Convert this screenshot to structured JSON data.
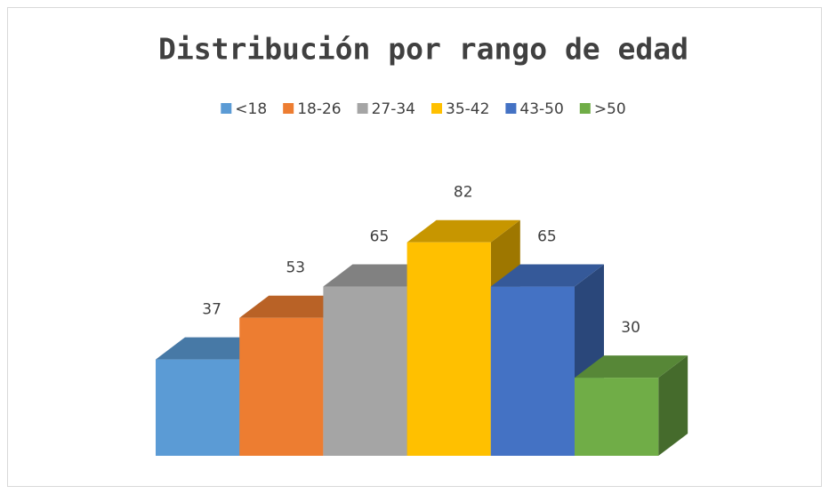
{
  "chart_data": {
    "type": "bar3d",
    "title": "Distribución por rango de edad",
    "series": [
      {
        "name": "<18",
        "color": "#5b9bd5",
        "values": [
          37
        ]
      },
      {
        "name": "18-26",
        "color": "#ed7d31",
        "values": [
          53
        ]
      },
      {
        "name": "27-34",
        "color": "#a5a5a5",
        "values": [
          65
        ]
      },
      {
        "name": "35-42",
        "color": "#ffc000",
        "values": [
          82
        ]
      },
      {
        "name": "43-50",
        "color": "#4472c4",
        "values": [
          65
        ]
      },
      {
        "name": ">50",
        "color": "#70ad47",
        "values": [
          30
        ]
      }
    ],
    "legend": "top"
  }
}
